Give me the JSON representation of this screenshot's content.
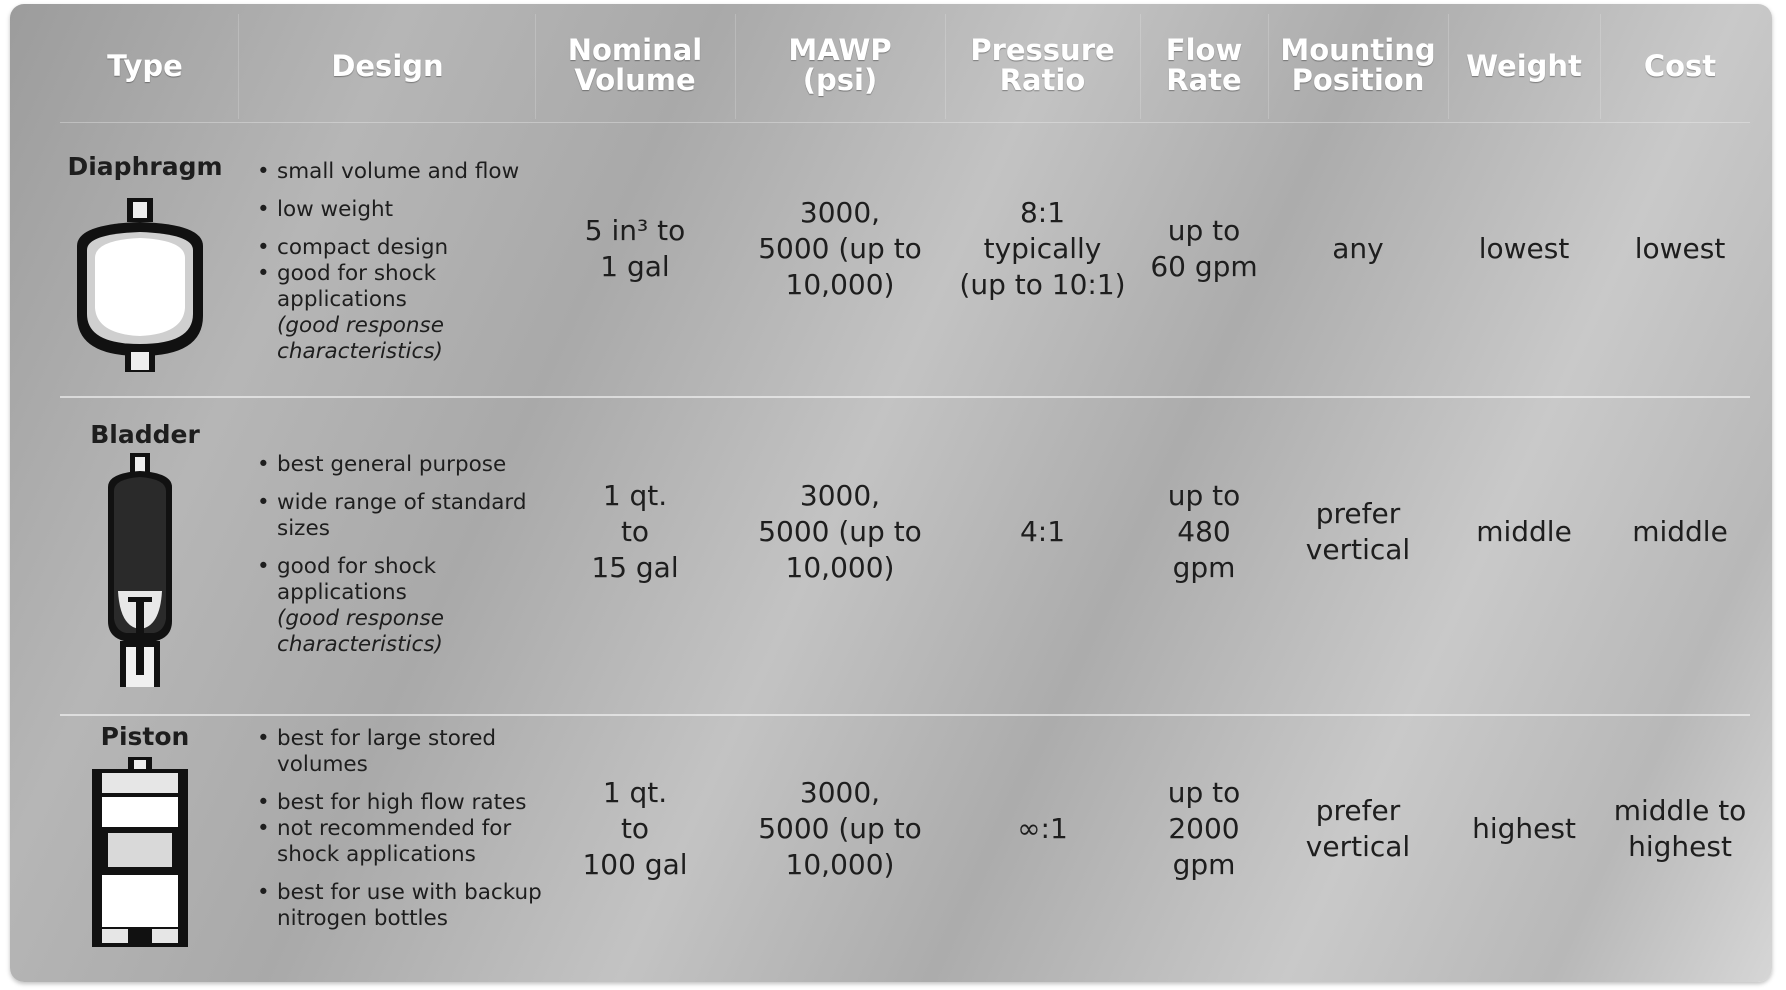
{
  "headers": {
    "type": "Type",
    "design": "Design",
    "nominal_volume": "Nominal\nVolume",
    "mawp": "MAWP\n(psi)",
    "pressure_ratio": "Pressure\nRatio",
    "flow_rate": "Flow\nRate",
    "mounting_position": "Mounting\nPosition",
    "weight": "Weight",
    "cost": "Cost"
  },
  "rows": [
    {
      "type": "Diaphragm",
      "icon": "diaphragm-accumulator-icon",
      "design": [
        "small volume and flow",
        "low weight",
        "compact design",
        "good for shock applications"
      ],
      "design_note": "(good response characteristics)",
      "nominal_volume": "5 in³ to\n1 gal",
      "mawp": "3000,\n5000 (up to\n10,000)",
      "pressure_ratio": "8:1\ntypically\n(up to 10:1)",
      "flow_rate": "up to\n60 gpm",
      "mounting_position": "any",
      "weight": "lowest",
      "cost": "lowest"
    },
    {
      "type": "Bladder",
      "icon": "bladder-accumulator-icon",
      "design": [
        "best general purpose",
        "wide range of standard sizes",
        "good for shock applications"
      ],
      "design_note": "(good response characteristics)",
      "nominal_volume": "1 qt.\nto\n15 gal",
      "mawp": "3000,\n5000 (up to\n10,000)",
      "pressure_ratio": "4:1",
      "flow_rate": "up to\n480\ngpm",
      "mounting_position": "prefer\nvertical",
      "weight": "middle",
      "cost": "middle"
    },
    {
      "type": "Piston",
      "icon": "piston-accumulator-icon",
      "design": [
        "best for large stored volumes",
        "best for high flow rates",
        "not recommended for shock applications",
        "best for use with backup nitrogen bottles"
      ],
      "nominal_volume": "1 qt.\nto\n100 gal",
      "mawp": "3000,\n5000 (up to\n10,000)",
      "pressure_ratio": "∞:1",
      "flow_rate": "up to\n2000\ngpm",
      "mounting_position": "prefer\nvertical",
      "weight": "highest",
      "cost": "middle to\nhighest"
    }
  ]
}
